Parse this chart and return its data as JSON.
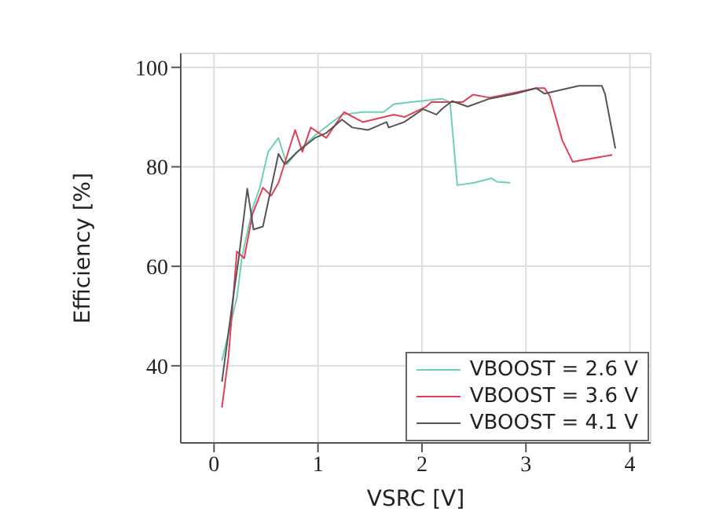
{
  "chart_data": {
    "type": "line",
    "xlabel": "VSRC [V]",
    "ylabel": "Efficiency [%]",
    "xlim": [
      -0.32,
      4.2
    ],
    "ylim": [
      24.5,
      102.8
    ],
    "xticks": [
      0,
      1,
      2,
      3,
      4
    ],
    "yticks": [
      40,
      60,
      80,
      100
    ],
    "grid": true,
    "legend": "bottom right",
    "marker": "none",
    "line_style": "solid",
    "series": [
      {
        "name": "VBOOST = 2.6 V",
        "color": "#6fcfb8",
        "x": [
          0.076,
          0.22,
          0.27,
          0.37,
          0.44,
          0.52,
          0.62,
          0.7,
          0.8,
          0.97,
          1.23,
          1.43,
          1.63,
          1.73,
          1.98,
          2.19,
          2.27,
          2.34,
          2.5,
          2.67,
          2.72,
          2.85
        ],
        "values": [
          41,
          53.7,
          62,
          71.6,
          75.8,
          83,
          85.8,
          80.5,
          83,
          86.3,
          90.5,
          91,
          91,
          92.6,
          93.2,
          93.7,
          93,
          76.3,
          76.8,
          77.7,
          77,
          76.8
        ]
      },
      {
        "name": "VBOOST = 3.6 V",
        "color": "#e0405a",
        "x": [
          0.076,
          0.14,
          0.22,
          0.29,
          0.37,
          0.47,
          0.55,
          0.62,
          0.78,
          0.85,
          0.93,
          1.08,
          1.25,
          1.43,
          1.73,
          1.83,
          2.04,
          2.09,
          2.39,
          2.49,
          2.65,
          2.8,
          3.1,
          3.18,
          3.23,
          3.35,
          3.45,
          3.83
        ],
        "values": [
          31.6,
          42,
          63,
          61.6,
          70.5,
          75.8,
          74.2,
          76.8,
          87.4,
          83,
          87.9,
          85.8,
          91,
          89,
          90.5,
          90,
          92.1,
          93,
          93,
          94.5,
          93.9,
          94.5,
          95.8,
          95.8,
          94.2,
          85.3,
          81,
          82.4
        ]
      },
      {
        "name": "VBOOST = 4.1 V",
        "color": "#555555",
        "x": [
          0.076,
          0.17,
          0.24,
          0.32,
          0.38,
          0.47,
          0.62,
          0.68,
          0.8,
          0.97,
          1.08,
          1.23,
          1.33,
          1.48,
          1.66,
          1.68,
          1.83,
          2.01,
          2.14,
          2.19,
          2.29,
          2.44,
          2.65,
          2.9,
          3.1,
          3.18,
          3.41,
          3.51,
          3.73,
          3.76,
          3.86
        ],
        "values": [
          36.8,
          51.6,
          62,
          75.6,
          67.4,
          68,
          82.6,
          80.5,
          83,
          85.8,
          86.8,
          89.5,
          87.9,
          87.4,
          89,
          87.9,
          89,
          91.6,
          90.5,
          91.6,
          93.2,
          92.1,
          93.7,
          94.7,
          95.8,
          94.7,
          95.8,
          96.3,
          96.3,
          94.7,
          83.7
        ]
      }
    ]
  }
}
